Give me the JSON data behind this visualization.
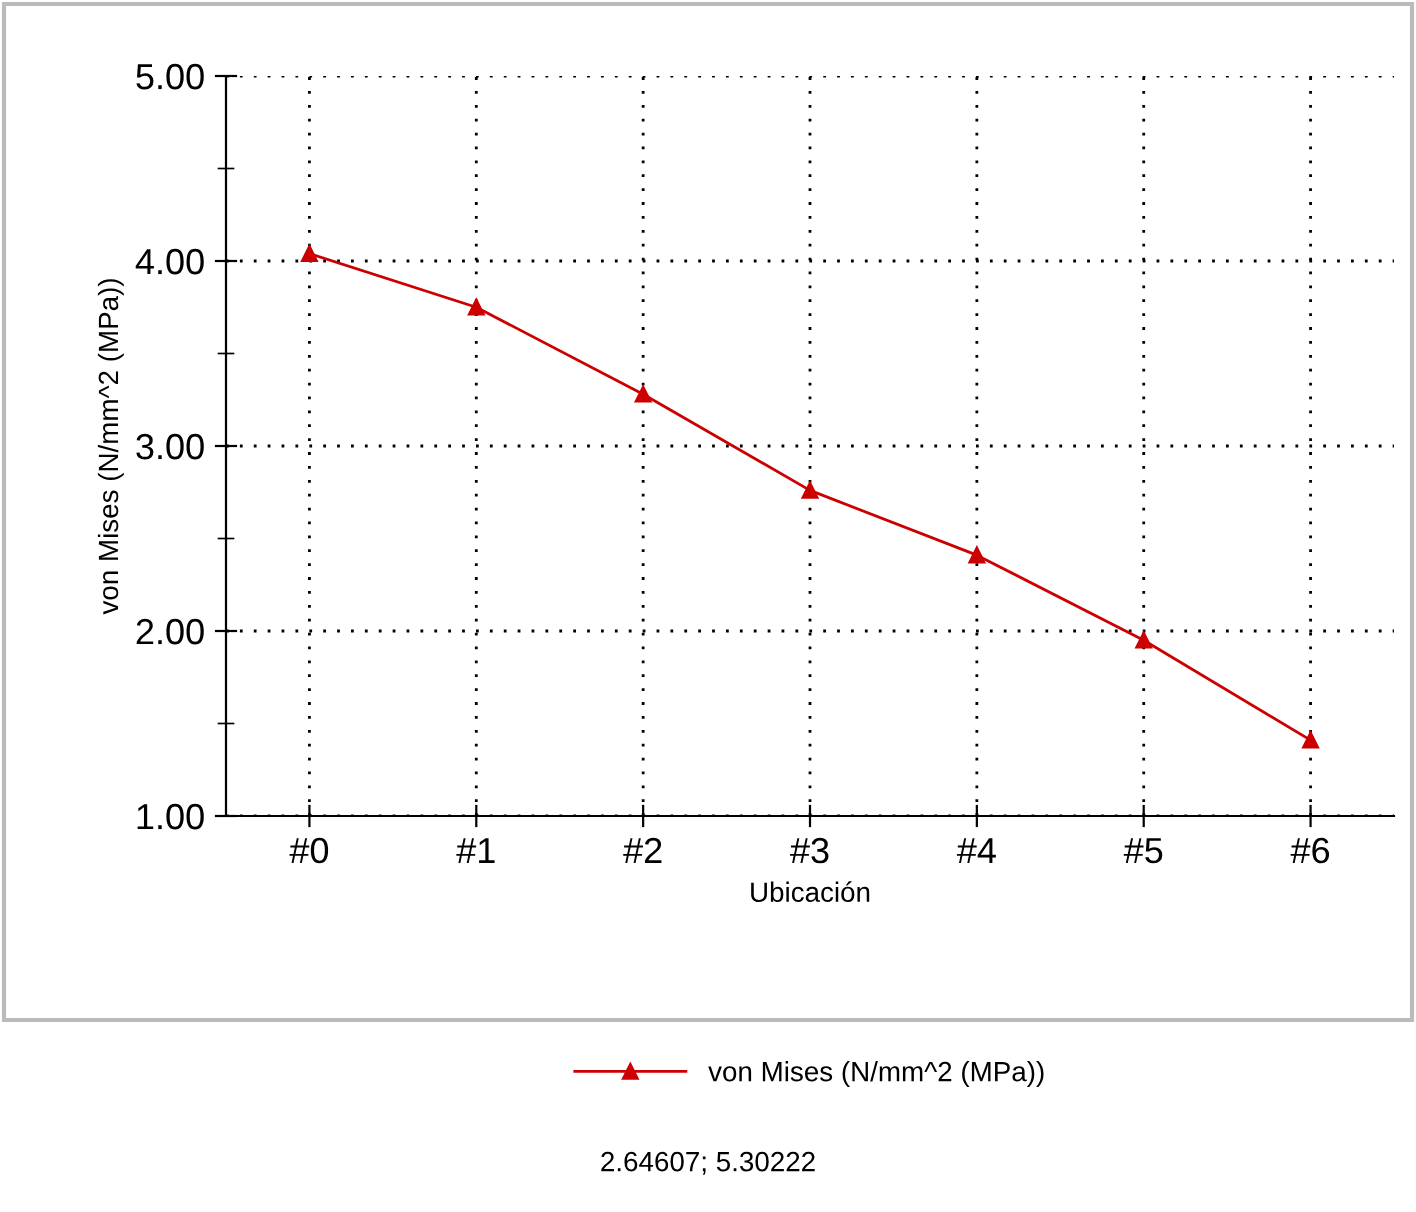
{
  "chart_data": {
    "type": "line",
    "xlabel": "Ubicación",
    "ylabel": "von Mises (N/mm^2 (MPa))",
    "categories": [
      "#0",
      "#1",
      "#2",
      "#3",
      "#4",
      "#5",
      "#6"
    ],
    "series": [
      {
        "name": "von Mises (N/mm^2 (MPa))",
        "color": "#cc0000",
        "values": [
          4.04,
          3.75,
          3.28,
          2.76,
          2.41,
          1.95,
          1.41
        ]
      }
    ],
    "ylim": [
      1,
      5
    ],
    "yticks": [
      {
        "value": 1,
        "label": "1.00"
      },
      {
        "value": 1.5,
        "label": null
      },
      {
        "value": 2,
        "label": "2.00"
      },
      {
        "value": 2.5,
        "label": null
      },
      {
        "value": 3,
        "label": "3.00"
      },
      {
        "value": 3.5,
        "label": null
      },
      {
        "value": 4,
        "label": "4.00"
      },
      {
        "value": 4.5,
        "label": null
      },
      {
        "value": 5,
        "label": "5.00"
      }
    ],
    "grid": true,
    "legend": "bottom",
    "marker": "triangle",
    "line_style": "solid",
    "annotations": [
      "2.64607; 5.30222"
    ]
  }
}
